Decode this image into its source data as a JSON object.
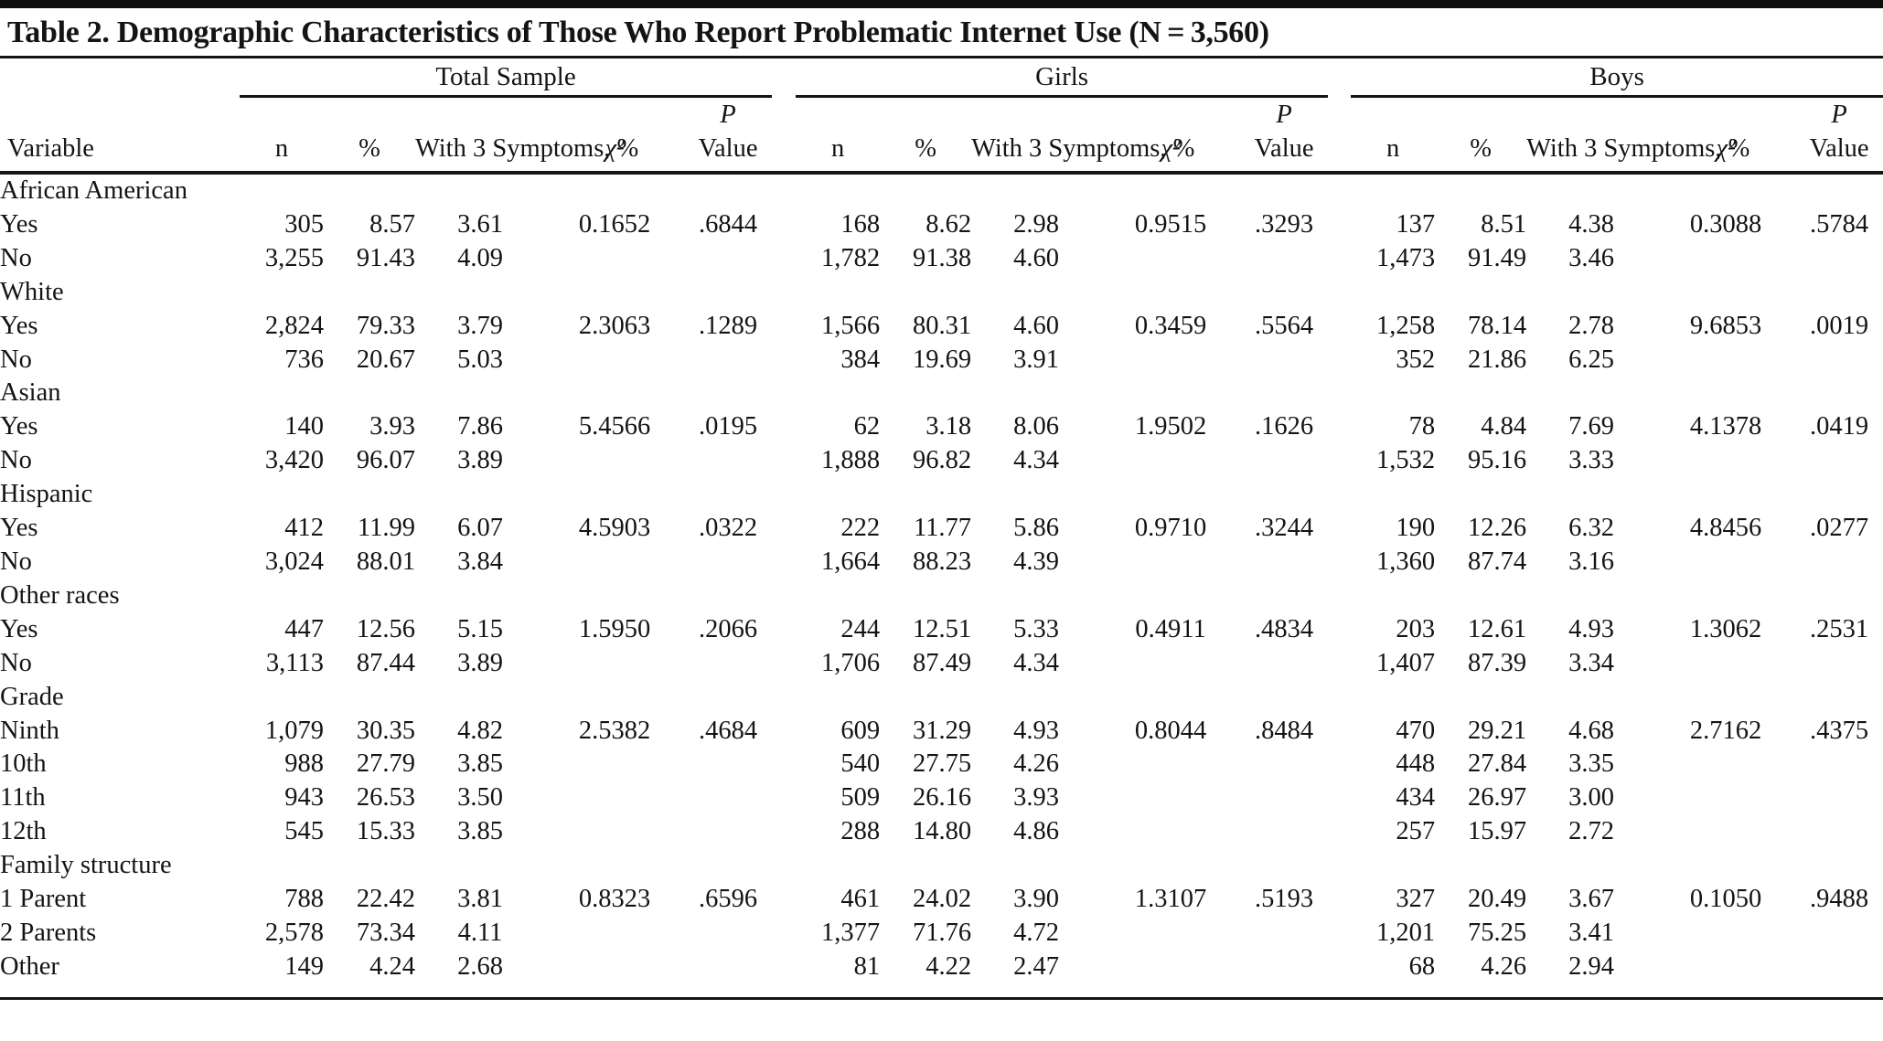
{
  "title": "Table 2. Demographic Characteristics of Those Who Report Problematic Internet Use (N = 3,560)",
  "table": {
    "groups": [
      {
        "label": "Total Sample"
      },
      {
        "label": "Girls"
      },
      {
        "label": "Boys"
      }
    ],
    "column_headers": {
      "variable": "Variable",
      "n": "n",
      "pct": "%",
      "symptoms": "With 3\nSymptoms,\n%",
      "chi_square": "χ²",
      "p_top": "P",
      "p_bottom": "Value"
    },
    "rows": [
      {
        "type": "category",
        "label": "African American"
      },
      {
        "type": "item",
        "label": "Yes",
        "cells": [
          "305",
          "8.57",
          "3.61",
          "0.1652",
          ".6844",
          "168",
          "8.62",
          "2.98",
          "0.9515",
          ".3293",
          "137",
          "8.51",
          "4.38",
          "0.3088",
          ".5784"
        ]
      },
      {
        "type": "item",
        "label": "No",
        "cells": [
          "3,255",
          "91.43",
          "4.09",
          "",
          "",
          "1,782",
          "91.38",
          "4.60",
          "",
          "",
          "1,473",
          "91.49",
          "3.46",
          "",
          ""
        ]
      },
      {
        "type": "category",
        "label": "White"
      },
      {
        "type": "item",
        "label": "Yes",
        "cells": [
          "2,824",
          "79.33",
          "3.79",
          "2.3063",
          ".1289",
          "1,566",
          "80.31",
          "4.60",
          "0.3459",
          ".5564",
          "1,258",
          "78.14",
          "2.78",
          "9.6853",
          ".0019"
        ]
      },
      {
        "type": "item",
        "label": "No",
        "cells": [
          "736",
          "20.67",
          "5.03",
          "",
          "",
          "384",
          "19.69",
          "3.91",
          "",
          "",
          "352",
          "21.86",
          "6.25",
          "",
          ""
        ]
      },
      {
        "type": "category",
        "label": "Asian"
      },
      {
        "type": "item",
        "label": "Yes",
        "cells": [
          "140",
          "3.93",
          "7.86",
          "5.4566",
          ".0195",
          "62",
          "3.18",
          "8.06",
          "1.9502",
          ".1626",
          "78",
          "4.84",
          "7.69",
          "4.1378",
          ".0419"
        ]
      },
      {
        "type": "item",
        "label": "No",
        "cells": [
          "3,420",
          "96.07",
          "3.89",
          "",
          "",
          "1,888",
          "96.82",
          "4.34",
          "",
          "",
          "1,532",
          "95.16",
          "3.33",
          "",
          ""
        ]
      },
      {
        "type": "category",
        "label": "Hispanic"
      },
      {
        "type": "item",
        "label": "Yes",
        "cells": [
          "412",
          "11.99",
          "6.07",
          "4.5903",
          ".0322",
          "222",
          "11.77",
          "5.86",
          "0.9710",
          ".3244",
          "190",
          "12.26",
          "6.32",
          "4.8456",
          ".0277"
        ]
      },
      {
        "type": "item",
        "label": "No",
        "cells": [
          "3,024",
          "88.01",
          "3.84",
          "",
          "",
          "1,664",
          "88.23",
          "4.39",
          "",
          "",
          "1,360",
          "87.74",
          "3.16",
          "",
          ""
        ]
      },
      {
        "type": "category",
        "label": "Other races"
      },
      {
        "type": "item",
        "label": "Yes",
        "cells": [
          "447",
          "12.56",
          "5.15",
          "1.5950",
          ".2066",
          "244",
          "12.51",
          "5.33",
          "0.4911",
          ".4834",
          "203",
          "12.61",
          "4.93",
          "1.3062",
          ".2531"
        ]
      },
      {
        "type": "item",
        "label": "No",
        "cells": [
          "3,113",
          "87.44",
          "3.89",
          "",
          "",
          "1,706",
          "87.49",
          "4.34",
          "",
          "",
          "1,407",
          "87.39",
          "3.34",
          "",
          ""
        ]
      },
      {
        "type": "category",
        "label": "Grade"
      },
      {
        "type": "item",
        "label": "Ninth",
        "cells": [
          "1,079",
          "30.35",
          "4.82",
          "2.5382",
          ".4684",
          "609",
          "31.29",
          "4.93",
          "0.8044",
          ".8484",
          "470",
          "29.21",
          "4.68",
          "2.7162",
          ".4375"
        ]
      },
      {
        "type": "item",
        "label": "10th",
        "cells": [
          "988",
          "27.79",
          "3.85",
          "",
          "",
          "540",
          "27.75",
          "4.26",
          "",
          "",
          "448",
          "27.84",
          "3.35",
          "",
          ""
        ]
      },
      {
        "type": "item",
        "label": "11th",
        "cells": [
          "943",
          "26.53",
          "3.50",
          "",
          "",
          "509",
          "26.16",
          "3.93",
          "",
          "",
          "434",
          "26.97",
          "3.00",
          "",
          ""
        ]
      },
      {
        "type": "item",
        "label": "12th",
        "cells": [
          "545",
          "15.33",
          "3.85",
          "",
          "",
          "288",
          "14.80",
          "4.86",
          "",
          "",
          "257",
          "15.97",
          "2.72",
          "",
          ""
        ]
      },
      {
        "type": "category",
        "label": "Family structure"
      },
      {
        "type": "item",
        "label": "1 Parent",
        "cells": [
          "788",
          "22.42",
          "3.81",
          "0.8323",
          ".6596",
          "461",
          "24.02",
          "3.90",
          "1.3107",
          ".5193",
          "327",
          "20.49",
          "3.67",
          "0.1050",
          ".9488"
        ]
      },
      {
        "type": "item",
        "label": "2 Parents",
        "cells": [
          "2,578",
          "73.34",
          "4.11",
          "",
          "",
          "1,377",
          "71.76",
          "4.72",
          "",
          "",
          "1,201",
          "75.25",
          "3.41",
          "",
          ""
        ]
      },
      {
        "type": "item",
        "label": "Other",
        "cells": [
          "149",
          "4.24",
          "2.68",
          "",
          "",
          "81",
          "4.22",
          "2.47",
          "",
          "",
          "68",
          "4.26",
          "2.94",
          "",
          ""
        ]
      }
    ]
  }
}
